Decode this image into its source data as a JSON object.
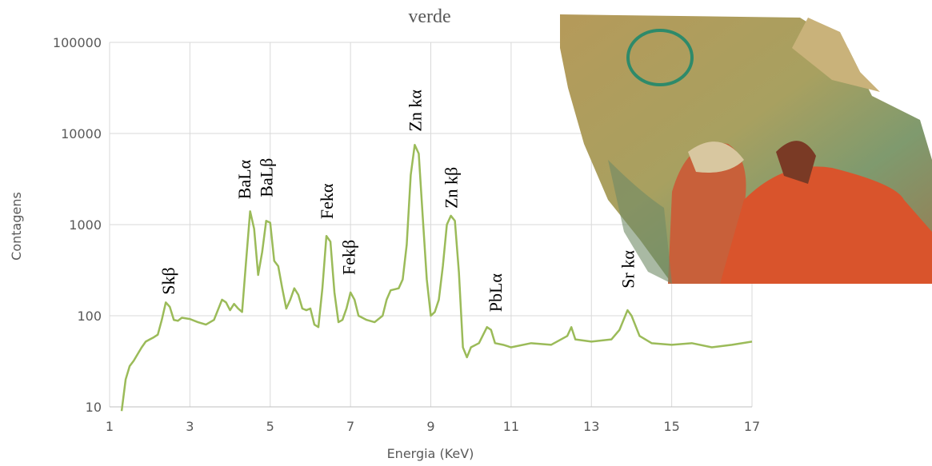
{
  "chart_data": {
    "type": "line",
    "title": "verde",
    "xlabel": "Energia (KeV)",
    "ylabel": "Contagens",
    "log_y": true,
    "grid": true,
    "xlim": [
      1,
      17
    ],
    "xticks": [
      1,
      3,
      5,
      7,
      9,
      11,
      13,
      15,
      17
    ],
    "ylim": [
      10,
      100000
    ],
    "yticks": [
      10,
      100,
      1000,
      10000,
      100000
    ],
    "series": [
      {
        "color": "#9bbb59",
        "x": [
          1.3,
          1.4,
          1.5,
          1.6,
          1.7,
          1.8,
          1.9,
          2.0,
          2.1,
          2.2,
          2.3,
          2.4,
          2.5,
          2.6,
          2.7,
          2.8,
          3.0,
          3.2,
          3.4,
          3.6,
          3.8,
          3.9,
          4.0,
          4.1,
          4.2,
          4.3,
          4.4,
          4.5,
          4.6,
          4.7,
          4.8,
          4.9,
          5.0,
          5.1,
          5.2,
          5.3,
          5.4,
          5.5,
          5.6,
          5.7,
          5.8,
          5.9,
          6.0,
          6.1,
          6.2,
          6.3,
          6.4,
          6.5,
          6.6,
          6.7,
          6.8,
          6.9,
          7.0,
          7.1,
          7.2,
          7.4,
          7.6,
          7.8,
          7.9,
          8.0,
          8.2,
          8.3,
          8.4,
          8.5,
          8.6,
          8.7,
          8.8,
          8.9,
          9.0,
          9.1,
          9.2,
          9.3,
          9.4,
          9.5,
          9.6,
          9.7,
          9.8,
          9.9,
          10.0,
          10.2,
          10.4,
          10.5,
          10.6,
          10.8,
          11.0,
          11.5,
          12.0,
          12.4,
          12.5,
          12.6,
          13.0,
          13.5,
          13.7,
          13.9,
          14.0,
          14.2,
          14.5,
          15.0,
          15.5,
          16.0,
          16.5,
          17.0
        ],
        "values": [
          9,
          20,
          28,
          32,
          38,
          45,
          52,
          55,
          58,
          62,
          90,
          140,
          125,
          90,
          88,
          95,
          92,
          85,
          80,
          90,
          150,
          140,
          115,
          135,
          120,
          110,
          400,
          1400,
          900,
          280,
          500,
          1100,
          1050,
          400,
          350,
          200,
          120,
          150,
          200,
          170,
          120,
          115,
          120,
          80,
          75,
          200,
          750,
          650,
          180,
          85,
          90,
          120,
          180,
          150,
          100,
          90,
          85,
          100,
          150,
          190,
          200,
          250,
          600,
          3500,
          7500,
          6000,
          1200,
          250,
          100,
          110,
          150,
          350,
          1000,
          1250,
          1100,
          300,
          45,
          35,
          45,
          50,
          75,
          70,
          50,
          48,
          45,
          50,
          48,
          60,
          75,
          55,
          52,
          55,
          70,
          115,
          100,
          60,
          50,
          48,
          50,
          45,
          48,
          52
        ]
      }
    ],
    "annotations": [
      {
        "text": "Skβ",
        "x": 2.45,
        "y": 170
      },
      {
        "text": "BaLα",
        "x": 4.35,
        "y": 1900
      },
      {
        "text": "BaLβ",
        "x": 4.9,
        "y": 2000
      },
      {
        "text": "Fekα",
        "x": 6.4,
        "y": 1150
      },
      {
        "text": "Fekβ",
        "x": 6.95,
        "y": 280
      },
      {
        "text": "Zn kα",
        "x": 8.6,
        "y": 10500
      },
      {
        "text": "Zn kβ",
        "x": 9.5,
        "y": 1500
      },
      {
        "text": "PbLα",
        "x": 10.6,
        "y": 110
      },
      {
        "text": "Sr kα",
        "x": 13.9,
        "y": 200
      }
    ]
  }
}
